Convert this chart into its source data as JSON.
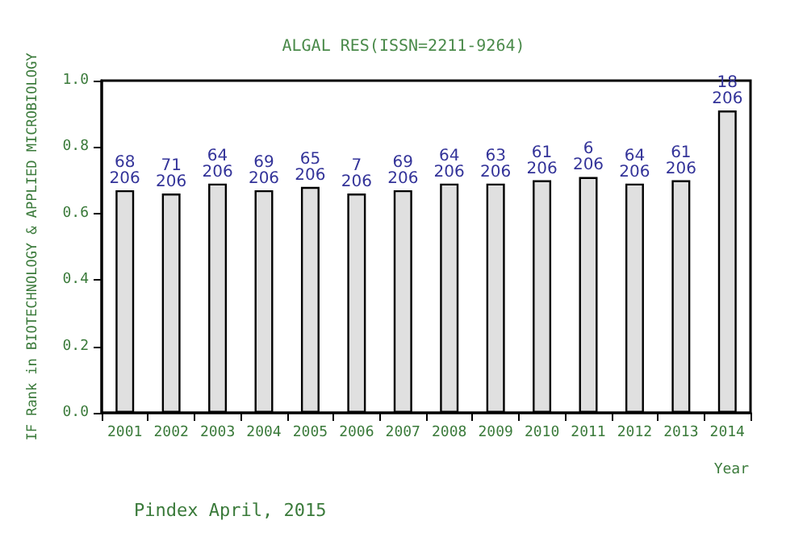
{
  "chart_data": {
    "type": "bar",
    "title": "ALGAL RES(ISSN=2211-9264)",
    "xlabel": "Year",
    "ylabel": "IF Rank in BIOTECHNOLOGY & APPLIED MICROBIOLOGY",
    "categories": [
      "2001",
      "2002",
      "2003",
      "2004",
      "2005",
      "2006",
      "2007",
      "2008",
      "2009",
      "2010",
      "2011",
      "2012",
      "2013",
      "2014"
    ],
    "values": [
      0.67,
      0.66,
      0.69,
      0.67,
      0.68,
      0.66,
      0.67,
      0.69,
      0.69,
      0.7,
      0.71,
      0.69,
      0.7,
      0.91
    ],
    "color": "#e0e0e0",
    "ylim": [
      0,
      1
    ],
    "yticks": [
      {
        "value": 0,
        "label": "0.0"
      },
      {
        "value": 0.2,
        "label": "0.2"
      },
      {
        "value": 0.4,
        "label": "0.4"
      },
      {
        "value": 0.6,
        "label": "0.6"
      },
      {
        "value": 0.8,
        "label": "0.8"
      },
      {
        "value": 1,
        "label": "1.0"
      }
    ],
    "grid": false,
    "annotations": [
      {
        "text": "68\n206",
        "x": "2001",
        "y": 0.67
      },
      {
        "text": "71\n206",
        "x": "2002",
        "y": 0.66
      },
      {
        "text": "64\n206",
        "x": "2003",
        "y": 0.69
      },
      {
        "text": "69\n206",
        "x": "2004",
        "y": 0.67
      },
      {
        "text": "65\n206",
        "x": "2005",
        "y": 0.68
      },
      {
        "text": "7\n206",
        "x": "2006",
        "y": 0.66
      },
      {
        "text": "69\n206",
        "x": "2007",
        "y": 0.67
      },
      {
        "text": "64\n206",
        "x": "2008",
        "y": 0.69
      },
      {
        "text": "63\n206",
        "x": "2009",
        "y": 0.69
      },
      {
        "text": "61\n206",
        "x": "2010",
        "y": 0.7
      },
      {
        "text": "6\n206",
        "x": "2011",
        "y": 0.71
      },
      {
        "text": "64\n206",
        "x": "2012",
        "y": 0.69
      },
      {
        "text": "61\n206",
        "x": "2013",
        "y": 0.7
      },
      {
        "text": "18\n206",
        "x": "2014",
        "y": 0.91
      },
      "Pindex April, 2015"
    ]
  }
}
